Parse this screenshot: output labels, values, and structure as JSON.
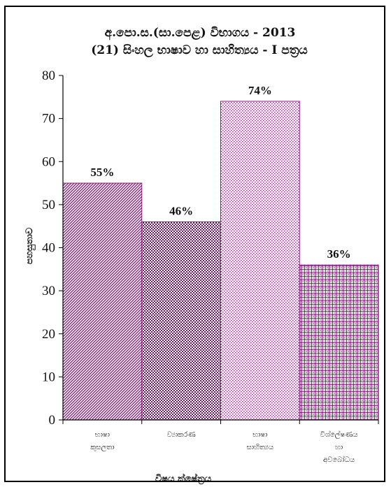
{
  "chart_data": {
    "type": "bar",
    "title": "අ.පො.ස.(සා.පෙළ) විභාගය - 2013",
    "subtitle": "(21) සිංහල භාෂාව හා සාහිත්‍යය - I පත්‍රය",
    "xlabel": "විෂය ක්ෂේත්‍රය",
    "ylabel": "පහසුතාව",
    "ylim": [
      0,
      80
    ],
    "yticks": [
      "0",
      "10",
      "20",
      "30",
      "40",
      "50",
      "60",
      "70",
      "80"
    ],
    "grid": false,
    "categories": [
      [
        "භාෂා",
        "කුසලතා"
      ],
      [
        "ව්‍යාකරණ"
      ],
      [
        "භාෂා",
        "සාහිත්‍යය"
      ],
      [
        "විශ්ලේෂණය",
        "හා",
        "අවබෝධය"
      ]
    ],
    "values": [
      55,
      46,
      74,
      36
    ],
    "data_labels": [
      "55%",
      "46%",
      "74%",
      "36%"
    ],
    "bar_fills": [
      "diagonal-hatch",
      "checker",
      "dots",
      "grid"
    ],
    "colors": {
      "bar_stroke": "#8a1a78",
      "bar_fill": "#7a1570",
      "axis": "#000000"
    }
  }
}
